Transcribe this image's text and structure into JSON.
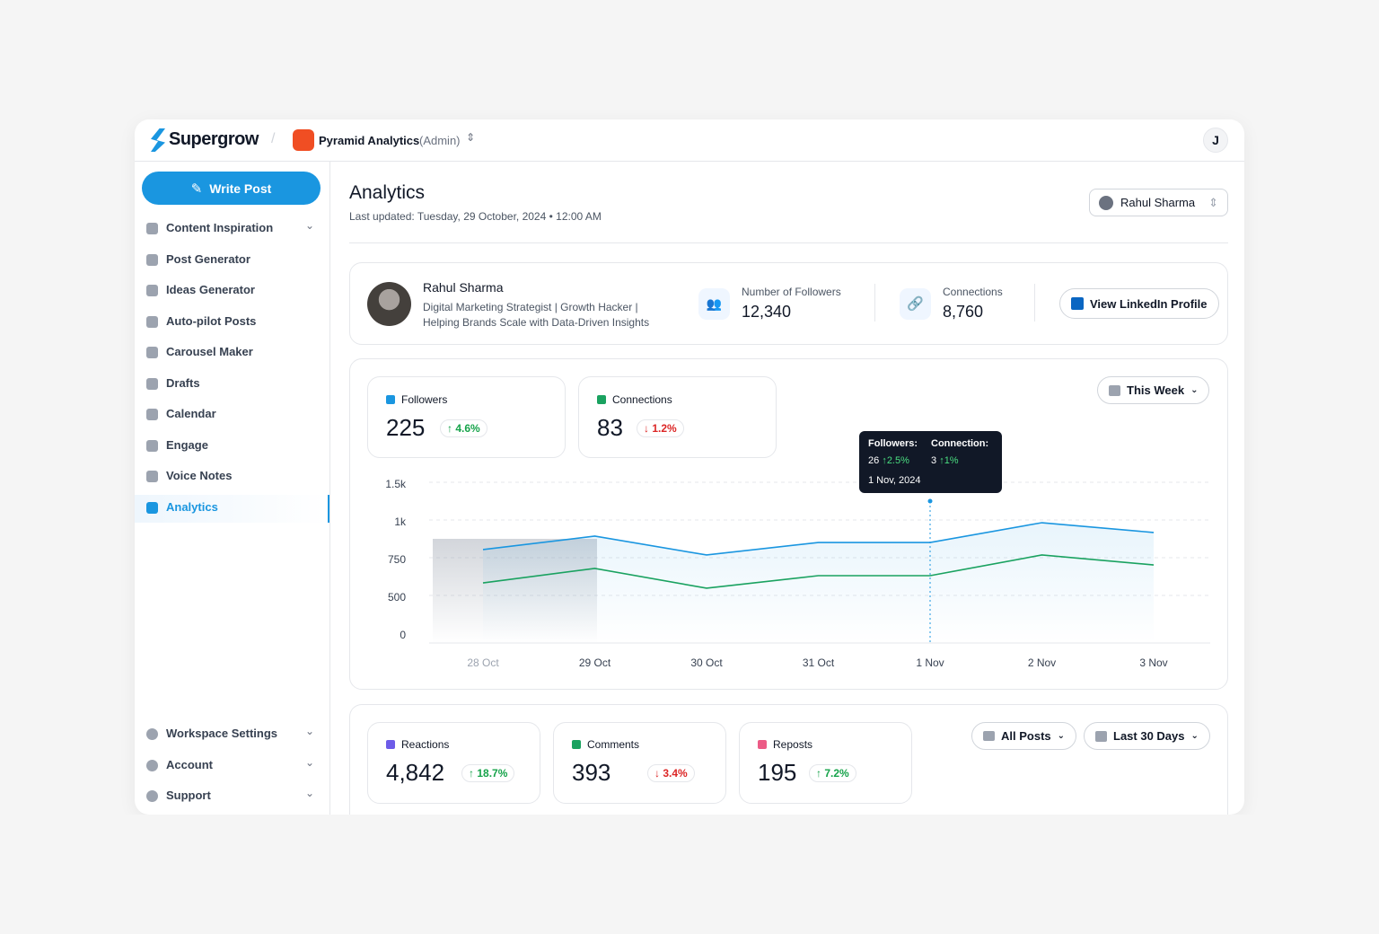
{
  "header": {
    "brand": "Supergrow",
    "workspace": "Pyramid Analytics",
    "role": "(Admin)",
    "avatar": "J"
  },
  "sidebar": {
    "write_post": "Write Post",
    "items": [
      "Content Inspiration",
      "Post Generator",
      "Ideas Generator",
      "Auto-pilot Posts",
      "Carousel Maker",
      "Drafts",
      "Calendar",
      "Engage",
      "Voice Notes",
      "Analytics"
    ],
    "bottom": [
      "Workspace Settings",
      "Account",
      "Support"
    ]
  },
  "page": {
    "title": "Analytics",
    "updated": "Last updated: Tuesday, 29 October, 2024 • 12:00 AM",
    "profile_select": "Rahul Sharma"
  },
  "profile": {
    "name": "Rahul Sharma",
    "headline_1": "Digital Marketing Strategist | Growth Hacker |",
    "headline_2": "Helping Brands Scale with Data-Driven Insights",
    "followers_label": "Number of Followers",
    "followers": "12,340",
    "connections_label": "Connections",
    "connections": "8,760",
    "button": "View LinkedIn Profile"
  },
  "growth": {
    "followers": "225",
    "followers_change": "4.6%",
    "connections": "83",
    "connections_change": "1.2%",
    "period": "This Week",
    "tooltip": {
      "followers_label": "Followers:",
      "followers_value": "26",
      "followers_change": "2.5%",
      "connections_label": "Connection:",
      "connections_value": "3",
      "connections_change": "1%",
      "date": "1 Nov, 2024"
    }
  },
  "chart_data": {
    "type": "line",
    "categories": [
      "28 Oct",
      "29 Oct",
      "30 Oct",
      "31 Oct",
      "1 Nov",
      "2 Nov",
      "3 Nov"
    ],
    "series": [
      {
        "name": "Followers",
        "color": "#1a96e0",
        "values": [
          804,
          893,
          768,
          851,
          851,
          982,
          917
        ]
      },
      {
        "name": "Connections",
        "color": "#1aa260",
        "values": [
          583,
          679,
          548,
          631,
          631,
          768,
          702
        ]
      }
    ],
    "ylim": [
      0,
      1500
    ],
    "yticks": [
      0,
      500,
      750,
      {
        "value": 1000,
        "label": "1k"
      },
      {
        "value": 1500,
        "label": "1.5k"
      }
    ],
    "grid": true
  },
  "posts": {
    "cards": [
      {
        "label": "Reactions",
        "value": "4,842",
        "change": "18.7%"
      },
      {
        "label": "Comments",
        "value": "393",
        "change": "3.4%"
      },
      {
        "label": "Reposts",
        "value": "195",
        "change": "7.2%"
      }
    ],
    "filter": "All Posts",
    "period": "Last 30 Days"
  }
}
